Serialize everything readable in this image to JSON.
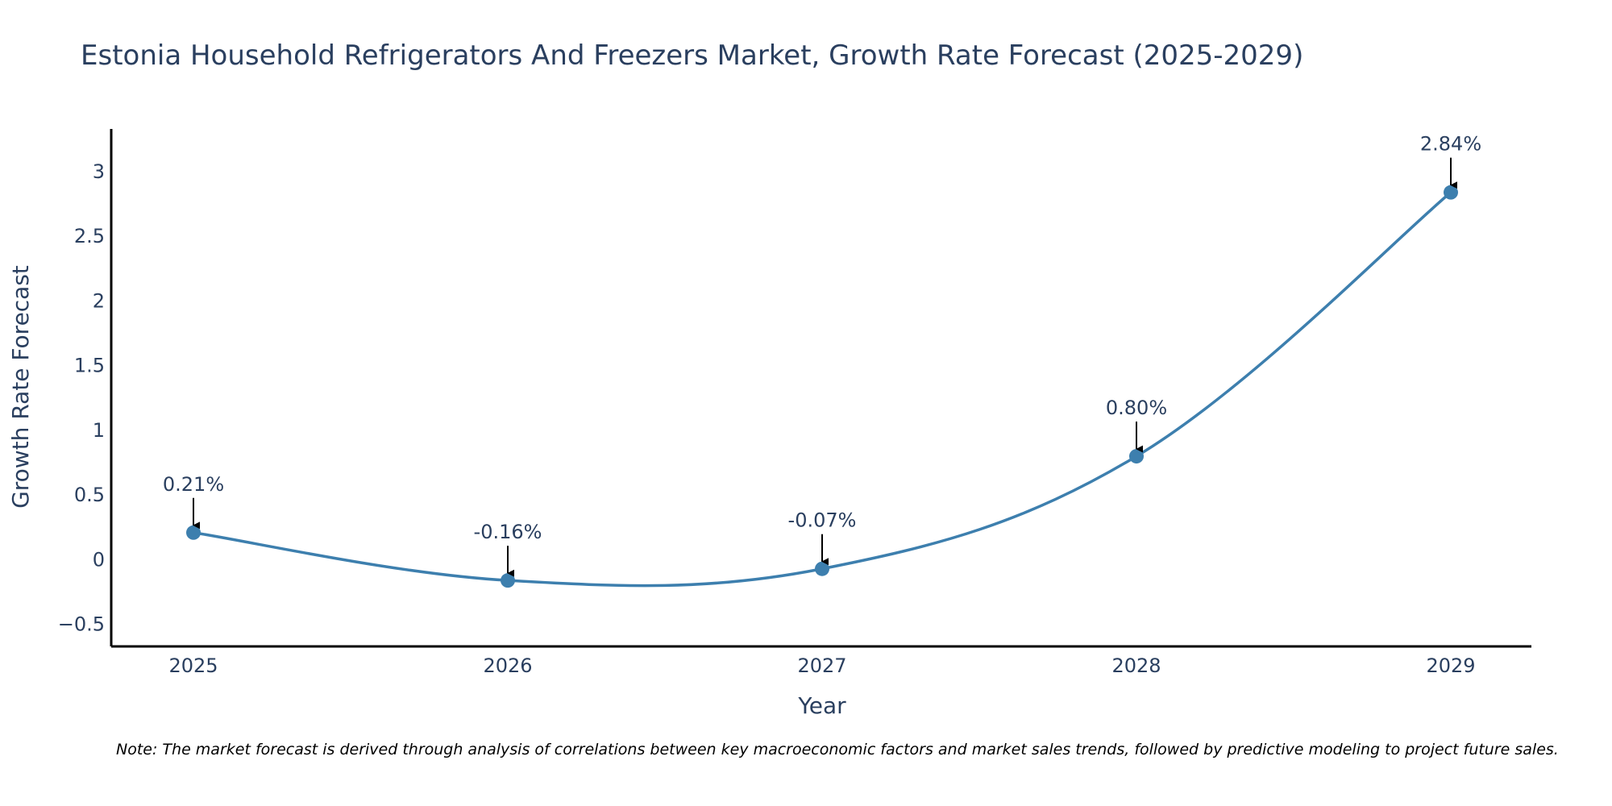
{
  "chart_data": {
    "type": "line",
    "title": "Estonia Household Refrigerators And Freezers Market, Growth Rate Forecast (2025-2029)",
    "xlabel": "Year",
    "ylabel": "Growth Rate Forecast",
    "categories": [
      "2025",
      "2026",
      "2027",
      "2028",
      "2029"
    ],
    "series": [
      {
        "name": "Growth Rate Forecast",
        "values": [
          0.21,
          -0.16,
          -0.07,
          0.8,
          2.84
        ],
        "labels": [
          "0.21%",
          "-0.16%",
          "-0.07%",
          "0.80%",
          "2.84%"
        ]
      }
    ],
    "ylim": [
      -0.67,
      3.33
    ],
    "yticks": [
      -0.5,
      0,
      0.5,
      1,
      1.5,
      2,
      2.5,
      3
    ],
    "ytick_labels": [
      "−0.5",
      "0",
      "0.5",
      "1",
      "1.5",
      "2",
      "2.5",
      "3"
    ],
    "grid": false,
    "line_color": "#3d7fae",
    "marker_color": "#3d7fae",
    "arrow_color": "#000000",
    "axis_color": "#000000"
  },
  "note": "Note: The market forecast is derived through analysis of correlations between key macroeconomic factors and market sales trends, followed by predictive modeling to project future sales."
}
